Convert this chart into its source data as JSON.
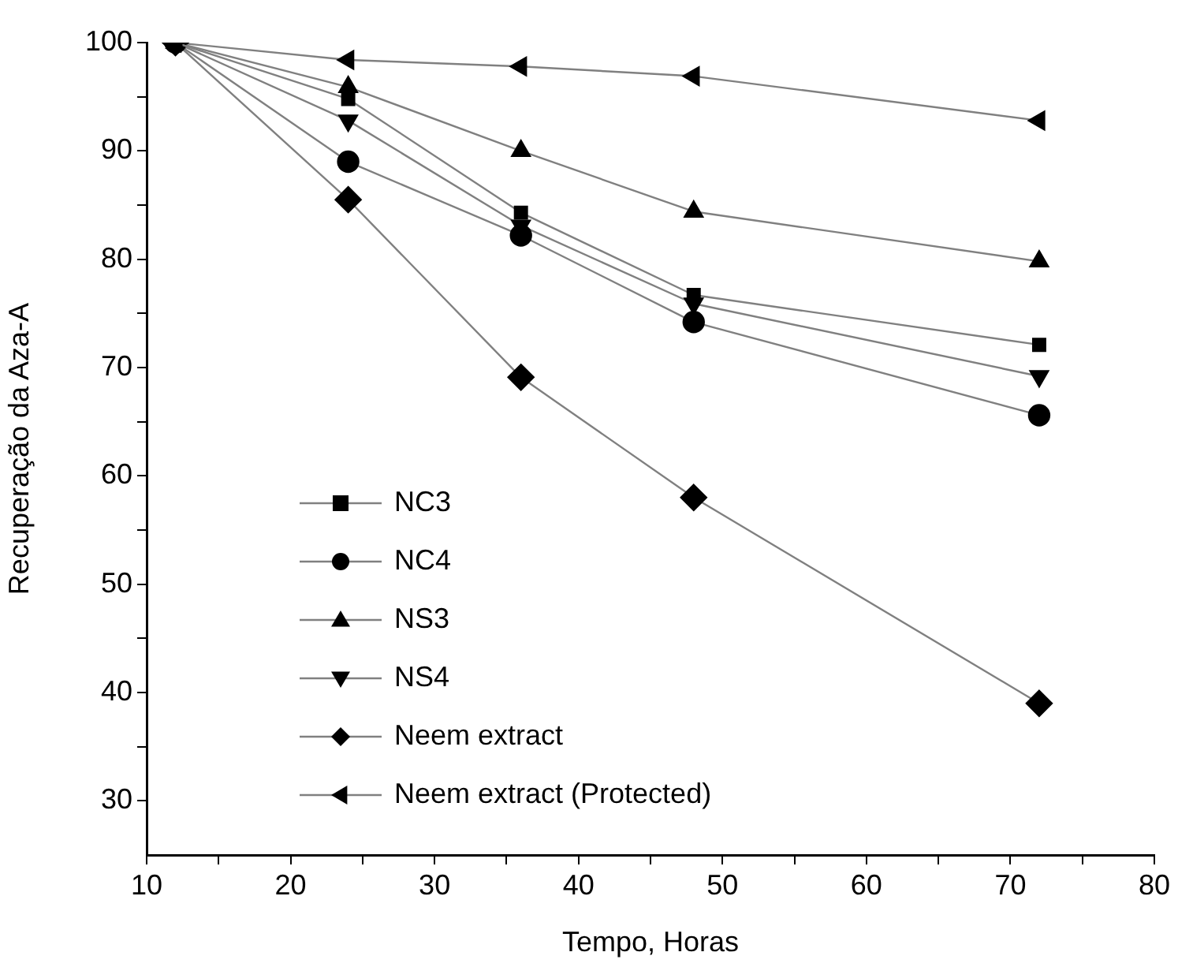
{
  "chart_data": {
    "type": "line",
    "xlabel": "Tempo, Horas",
    "ylabel": "Recuperação da Aza-A",
    "x": [
      12,
      24,
      36,
      48,
      72
    ],
    "xlim": [
      10,
      80
    ],
    "xticks": [
      10,
      {
        "value": 15,
        "label": null
      },
      20,
      {
        "value": 25,
        "label": null
      },
      30,
      {
        "value": 35,
        "label": null
      },
      40,
      {
        "value": 45,
        "label": null
      },
      50,
      {
        "value": 55,
        "label": null
      },
      60,
      {
        "value": 65,
        "label": null
      },
      70,
      {
        "value": 75,
        "label": null
      },
      80
    ],
    "ylim": [
      25,
      100
    ],
    "yticks": [
      30,
      {
        "value": 35,
        "label": null
      },
      40,
      {
        "value": 45,
        "label": null
      },
      50,
      {
        "value": 55,
        "label": null
      },
      60,
      {
        "value": 65,
        "label": null
      },
      70,
      {
        "value": 75,
        "label": null
      },
      80,
      {
        "value": 85,
        "label": null
      },
      90,
      {
        "value": 95,
        "label": null
      },
      100
    ],
    "grid": false,
    "legend": "bottom left",
    "line_style": "solid",
    "series": [
      {
        "name": "NC3",
        "color": "#000000",
        "marker": "square",
        "values": [
          100,
          94.8,
          84.3,
          76.7,
          72.1
        ]
      },
      {
        "name": "NC4",
        "color": "#000000",
        "marker": "circle",
        "values": [
          100,
          89.0,
          82.2,
          74.2,
          65.6
        ]
      },
      {
        "name": "NS3",
        "color": "#000000",
        "marker": "triangle",
        "values": [
          100,
          95.9,
          90.0,
          84.4,
          79.8
        ]
      },
      {
        "name": "NS4",
        "color": "#000000",
        "marker": "triangle-down",
        "values": [
          100,
          92.8,
          83.1,
          75.9,
          69.2
        ]
      },
      {
        "name": "Neem extract",
        "color": "#000000",
        "marker": "diamond",
        "values": [
          100,
          85.5,
          69.1,
          58.0,
          39.0
        ]
      },
      {
        "name": "Neem extract (Protected)",
        "color": "#000000",
        "marker": "triangle-left",
        "values": [
          100,
          98.4,
          97.8,
          96.9,
          92.8
        ]
      }
    ]
  }
}
